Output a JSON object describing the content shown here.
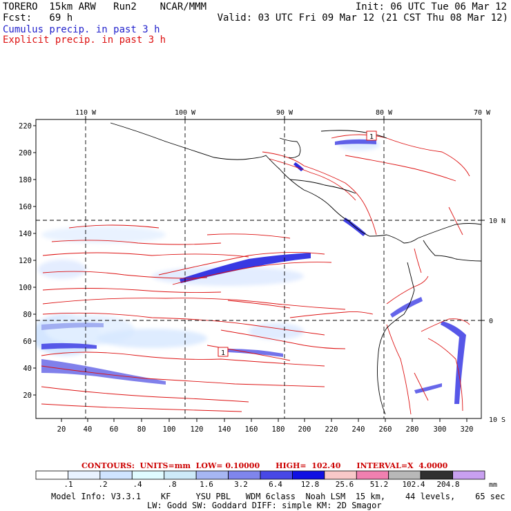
{
  "header": {
    "left_line1": "TORERO  15km ARW   Run2    NCAR/MMM",
    "left_line2": "Fcst:   69 h",
    "right_line1": "Init: 06 UTC Tue 06 Mar 12",
    "right_line2": "Valid: 03 UTC Fri 09 Mar 12 (21 CST Thu 08 Mar 12)",
    "legend_cumulus": "Cumulus precip. in past 3 h",
    "legend_explicit": "Explicit precip. in past 3 h"
  },
  "map": {
    "top_lon_labels": [
      "110 W",
      "100 W",
      "90 W",
      "80 W",
      "70 W"
    ],
    "left_axis_labels": [
      "220",
      "200",
      "180",
      "160",
      "140",
      "120",
      "100",
      "80",
      "60",
      "40",
      "20"
    ],
    "right_lat_labels": [
      "10 N",
      "0",
      "10 S"
    ],
    "bottom_axis_labels": [
      "20",
      "40",
      "60",
      "80",
      "100",
      "120",
      "140",
      "160",
      "180",
      "200",
      "220",
      "240",
      "260",
      "280",
      "300",
      "320"
    ],
    "box_labels": [
      "1",
      "1"
    ],
    "colors": {
      "cumulus": "#2222cc",
      "explicit": "#dd1111",
      "coast": "#000000"
    }
  },
  "colorbar": {
    "contours_text": "CONTOURS:  UNITS=mm  LOW= 0.10000      HIGH=  102.40      INTERVAL=X  4.0000",
    "tick_labels": [
      ".1",
      ".2",
      ".4",
      ".8",
      "1.6",
      "3.2",
      "6.4",
      "12.8",
      "25.6",
      "51.2",
      "102.4",
      "204.8"
    ],
    "unit": "mm",
    "colors": [
      "#ffffff",
      "#e8f2ff",
      "#d0e4ff",
      "#e0fbff",
      "#cdeaf8",
      "#a6b6f2",
      "#7f85ec",
      "#4848e6",
      "#1010e2",
      "#f8c8c8",
      "#f080b0",
      "#b8b8b8",
      "#303030",
      "#c8a0f0"
    ]
  },
  "footer": {
    "line1": "Model Info: V3.3.1    KF     YSU PBL   WDM 6class  Noah LSM  15 km,    44 levels,    65 sec",
    "line2": "LW: Godd SW: Goddard DIFF: simple KM: 2D Smagor"
  }
}
